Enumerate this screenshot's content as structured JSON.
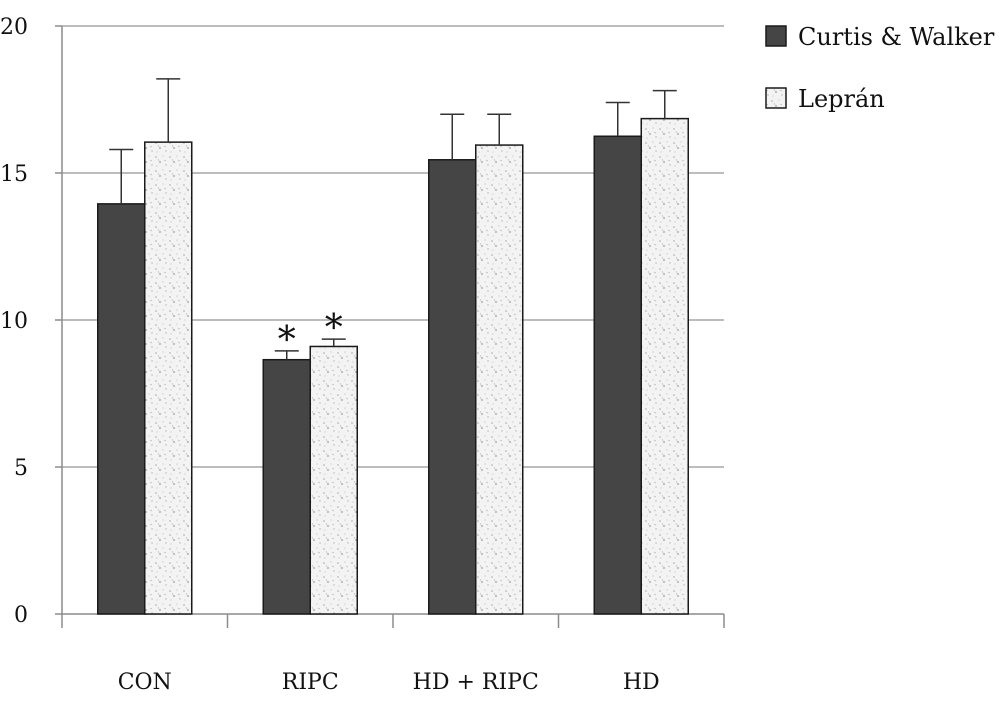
{
  "chart_data": {
    "type": "bar",
    "categories": [
      "CON",
      "RIPC",
      "HD + RIPC",
      "HD"
    ],
    "series": [
      {
        "name": "Curtis & Walker",
        "values": [
          13.95,
          8.65,
          15.45,
          16.25
        ],
        "errors": [
          1.85,
          0.3,
          1.55,
          1.15
        ],
        "fill": "dark"
      },
      {
        "name": "Leprán",
        "values": [
          16.05,
          9.1,
          15.95,
          16.85
        ],
        "errors": [
          2.15,
          0.25,
          1.05,
          0.95
        ],
        "fill": "speckled"
      }
    ],
    "annotations": [
      {
        "category": "RIPC",
        "series": "Curtis & Walker",
        "text": "*"
      },
      {
        "category": "RIPC",
        "series": "Leprán",
        "text": "*"
      }
    ],
    "ylim": [
      0,
      20
    ],
    "yticks": [
      "0",
      "5",
      "10",
      "15",
      "20"
    ],
    "ytick_values": [
      0,
      5,
      10,
      15,
      20
    ],
    "grid": true,
    "legend_position": "top-right",
    "colors": {
      "dark_fill": "#454545",
      "light_fill": "#f2f2f2",
      "outline": "#1a1a1a",
      "grid": "#a6a6a6",
      "axis": "#8c8c8c"
    }
  }
}
